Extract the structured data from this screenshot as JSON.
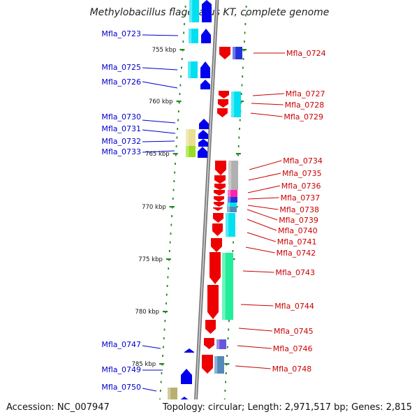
{
  "title": "Methylobacillus flagellatus KT, complete genome",
  "footer": {
    "accession": "Accession: NC_007947",
    "info": "Topology: circular; Length: 2,971,517 bp; Genes: 2,815"
  },
  "colors": {
    "left_label": "#0000cc",
    "right_label": "#cc0000",
    "forward_gene": "#0000ee",
    "reverse_gene": "#ee0000",
    "backbone": "#888888",
    "tick": "#228822",
    "cog_cyan": "#00e0f0",
    "cog_khaki": "#e8df90",
    "cog_khaki_dark": "#b9b070",
    "cog_green": "#99dd22",
    "cog_blue": "#2233dd",
    "cog_steel": "#5588bb",
    "cog_mint": "#22ee99",
    "cog_gray": "#b0b0b0",
    "cog_magenta": "#ff22aa",
    "cog_purple": "#6655dd"
  },
  "ticks": [
    "755 kbp",
    "760 kbp",
    "765 kbp",
    "770 kbp",
    "775 kbp",
    "780 kbp",
    "785 kbp"
  ],
  "left_genes": [
    "Mfla_0723",
    "Mfla_0725",
    "Mfla_0726",
    "Mfla_0730",
    "Mfla_0731",
    "Mfla_0732",
    "Mfla_0733",
    "Mfla_0747",
    "Mfla_0749",
    "Mfla_0750"
  ],
  "right_genes": [
    "Mfla_0724",
    "Mfla_0727",
    "Mfla_0728",
    "Mfla_0729",
    "Mfla_0734",
    "Mfla_0735",
    "Mfla_0736",
    "Mfla_0737",
    "Mfla_0738",
    "Mfla_0739",
    "Mfla_0740",
    "Mfla_0741",
    "Mfla_0742",
    "Mfla_0743",
    "Mfla_0744",
    "Mfla_0745",
    "Mfla_0746",
    "Mfla_0748"
  ]
}
